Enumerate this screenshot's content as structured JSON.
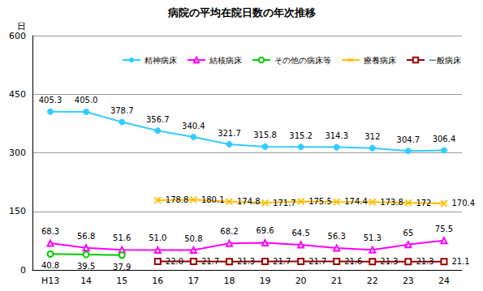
{
  "chart_data": {
    "type": "line",
    "title": "病院の平均在院日数の年次推移",
    "y_label": "日",
    "categories": [
      "H13",
      "14",
      "15",
      "16",
      "17",
      "18",
      "19",
      "20",
      "21",
      "22",
      "23",
      "24"
    ],
    "ylim": [
      0,
      600
    ],
    "yticks": [
      0,
      150,
      300,
      450,
      600
    ],
    "grid": true,
    "legend": "top",
    "data_labels": true,
    "series": [
      {
        "name": "精神病床",
        "color": "#33ccff",
        "marker": "circle",
        "values": [
          405.3,
          405.0,
          378.7,
          356.7,
          340.4,
          321.7,
          315.8,
          315.2,
          314.3,
          312,
          304.7,
          306.4
        ],
        "value_labels": [
          "405.3",
          "405.0",
          "378.7",
          "356.7",
          "340.4",
          "321.7",
          "315.8",
          "315.2",
          "314.3",
          "312",
          "304.7",
          "306.4"
        ]
      },
      {
        "name": "結核病床",
        "color": "#ff00ff",
        "marker": "triangle",
        "values": [
          68.3,
          56.8,
          51.6,
          51.0,
          50.8,
          68.2,
          69.6,
          64.5,
          56.3,
          51.3,
          65,
          75.5
        ],
        "value_labels": [
          "68.3",
          "56.8",
          "51.6",
          "51.0",
          "50.8",
          "68.2",
          "69.6",
          "64.5",
          "56.3",
          "51.3",
          "65",
          "75.5"
        ]
      },
      {
        "name": "その他の病床等",
        "color": "#00cc00",
        "marker": "open_circle",
        "values": [
          40.8,
          39.5,
          37.9,
          null,
          null,
          null,
          null,
          null,
          null,
          null,
          null,
          null
        ],
        "value_labels": [
          "40.8",
          "39.5",
          "37.9",
          null,
          null,
          null,
          null,
          null,
          null,
          null,
          null,
          null
        ]
      },
      {
        "name": "療養病床",
        "color": "#ffc000",
        "marker": "x",
        "values": [
          null,
          null,
          null,
          178.8,
          180.1,
          174.8,
          171.7,
          175.5,
          174.4,
          173.8,
          172,
          170.4
        ],
        "value_labels": [
          null,
          null,
          null,
          "178.8",
          "180.1",
          "174.8",
          "171.7",
          "175.5",
          "174.4",
          "173.8",
          "172",
          "170.4"
        ]
      },
      {
        "name": "一般病床",
        "color": "#990000",
        "marker": "square",
        "values": [
          null,
          null,
          null,
          22.0,
          21.7,
          21.3,
          21.7,
          21.7,
          21.6,
          21.3,
          21.3,
          21.1
        ],
        "value_labels": [
          null,
          null,
          null,
          "22.0",
          "21.7",
          "21.3",
          "21.7",
          "21.7",
          "21.6",
          "21.3",
          "21.3",
          "21.1"
        ]
      }
    ]
  }
}
